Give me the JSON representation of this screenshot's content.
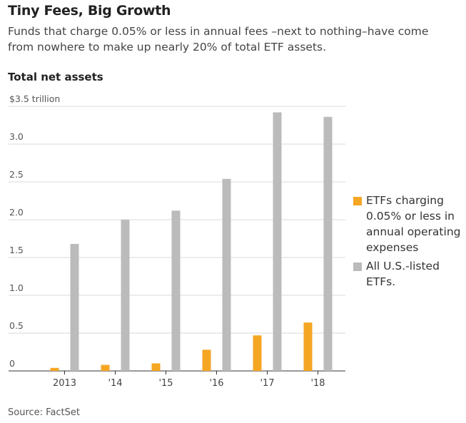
{
  "header": {
    "title": "Tiny Fees, Big Growth",
    "subtitle": "Funds that charge 0.05% or less in annual fees –next to nothing–have come from nowhere to make up nearly 20% of total ETF assets.",
    "section_title": "Total net assets"
  },
  "footer": {
    "source": "Source: FactSet"
  },
  "colors": {
    "low_fee": "#f5a623",
    "all_etfs": "#bbbbbb",
    "grid": "#d9d9d9",
    "axis": "#333333"
  },
  "chart_data": {
    "type": "bar",
    "title": "",
    "xlabel": "",
    "ylabel": "",
    "unit_label": "$3.5 trillion",
    "categories": [
      "2013",
      "'14",
      "'15",
      "'16",
      "'17",
      "'18"
    ],
    "ylim": [
      0,
      3.5
    ],
    "yticks": [
      0,
      0.5,
      1.0,
      1.5,
      2.0,
      2.5,
      3.0,
      3.5
    ],
    "ytick_labels": [
      "0",
      "0.5",
      "1.0",
      "1.5",
      "2.0",
      "2.5",
      "3.0",
      "$3.5 trillion"
    ],
    "grid": true,
    "legend_position": "right",
    "series": [
      {
        "name": "ETFs charging 0.05% or less in annual operating expenses",
        "color": "#f5a623",
        "values": [
          0.04,
          0.08,
          0.1,
          0.28,
          0.47,
          0.64
        ]
      },
      {
        "name": "All U.S.-listed ETFs.",
        "color": "#bbbbbb",
        "values": [
          1.68,
          2.0,
          2.12,
          2.54,
          3.42,
          3.36
        ]
      }
    ]
  }
}
